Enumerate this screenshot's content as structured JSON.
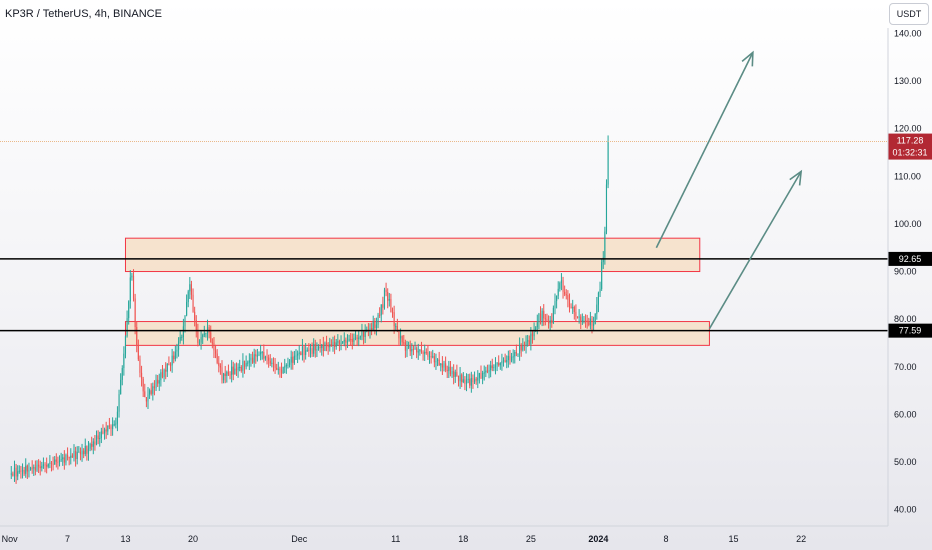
{
  "header": {
    "title": "KP3R / TetherUS, 4h, BINANCE",
    "currency_button": "USDT"
  },
  "colors": {
    "up": "#26a69a",
    "down": "#ef5350",
    "zone_fill": "#f5dcc0",
    "zone_border": "#f23645",
    "arrow": "#5b8c85",
    "level_line": "#000000",
    "current_price": "#b22833"
  },
  "chart_data": {
    "type": "candlestick",
    "title": "KP3R / TetherUS, 4h, BINANCE",
    "y_axis": {
      "range": [
        37,
        147
      ],
      "ticks": [
        40,
        50,
        60,
        70,
        80,
        90,
        100,
        110,
        120,
        130,
        140
      ],
      "tick_labels": [
        "40.00",
        "50.00",
        "60.00",
        "70.00",
        "80.00",
        "90.00",
        "100.00",
        "110.00",
        "120.00",
        "130.00",
        "140.00"
      ],
      "unit": "USDT",
      "position": "right"
    },
    "x_axis": {
      "ticks": [
        "Nov",
        "7",
        "13",
        "20",
        "Dec",
        "11",
        "18",
        "25",
        "2024",
        "8",
        "15",
        "22"
      ],
      "tick_days": [
        0,
        6,
        12,
        19,
        30,
        40,
        47,
        54,
        61,
        68,
        75,
        82
      ],
      "range_days": [
        -1,
        91
      ]
    },
    "series_anchors": [
      {
        "day": 0,
        "price": 47.5
      },
      {
        "day": 2,
        "price": 48.5
      },
      {
        "day": 4,
        "price": 49.5
      },
      {
        "day": 6,
        "price": 51
      },
      {
        "day": 8,
        "price": 52.5
      },
      {
        "day": 10,
        "price": 57
      },
      {
        "day": 11,
        "price": 58
      },
      {
        "day": 12,
        "price": 76
      },
      {
        "day": 12.6,
        "price": 91
      },
      {
        "day": 13.2,
        "price": 73
      },
      {
        "day": 14,
        "price": 63
      },
      {
        "day": 15,
        "price": 66
      },
      {
        "day": 17,
        "price": 72
      },
      {
        "day": 18,
        "price": 78
      },
      {
        "day": 18.6,
        "price": 88
      },
      {
        "day": 19.5,
        "price": 75
      },
      {
        "day": 20.5,
        "price": 78
      },
      {
        "day": 22,
        "price": 68
      },
      {
        "day": 24,
        "price": 70
      },
      {
        "day": 26,
        "price": 73
      },
      {
        "day": 28,
        "price": 69
      },
      {
        "day": 30,
        "price": 73
      },
      {
        "day": 32,
        "price": 74
      },
      {
        "day": 34,
        "price": 75
      },
      {
        "day": 36,
        "price": 76
      },
      {
        "day": 38,
        "price": 79
      },
      {
        "day": 39,
        "price": 86
      },
      {
        "day": 40,
        "price": 78
      },
      {
        "day": 41,
        "price": 74
      },
      {
        "day": 43,
        "price": 73
      },
      {
        "day": 45,
        "price": 70
      },
      {
        "day": 47,
        "price": 67
      },
      {
        "day": 48,
        "price": 67
      },
      {
        "day": 50,
        "price": 70
      },
      {
        "day": 52,
        "price": 72
      },
      {
        "day": 54,
        "price": 76
      },
      {
        "day": 55,
        "price": 81
      },
      {
        "day": 56,
        "price": 79
      },
      {
        "day": 57,
        "price": 88
      },
      {
        "day": 58,
        "price": 83
      },
      {
        "day": 59,
        "price": 80
      },
      {
        "day": 60.5,
        "price": 79
      },
      {
        "day": 61,
        "price": 85
      },
      {
        "day": 61.6,
        "price": 95
      },
      {
        "day": 62,
        "price": 117.28
      }
    ],
    "levels": [
      {
        "label": "92.65",
        "price": 92.65
      },
      {
        "label": "77.59",
        "price": 77.59
      }
    ],
    "current_price": {
      "price": 117.28,
      "label": "117.28",
      "countdown": "01:32:31"
    },
    "zones": [
      {
        "name": "resistance-zone",
        "from_day": 12,
        "to_day": 71.5,
        "low": 90,
        "high": 97
      },
      {
        "name": "support-zone",
        "from_day": 12,
        "to_day": 72.5,
        "low": 74.5,
        "high": 79.5
      }
    ],
    "arrows": [
      {
        "name": "upper-projection-arrow",
        "from": {
          "day": 67,
          "price": 95
        },
        "to": {
          "day": 77,
          "price": 136
        }
      },
      {
        "name": "lower-projection-arrow",
        "from": {
          "day": 72.5,
          "price": 78
        },
        "to": {
          "day": 82,
          "price": 111
        }
      }
    ],
    "grid": false,
    "legend": "none"
  }
}
